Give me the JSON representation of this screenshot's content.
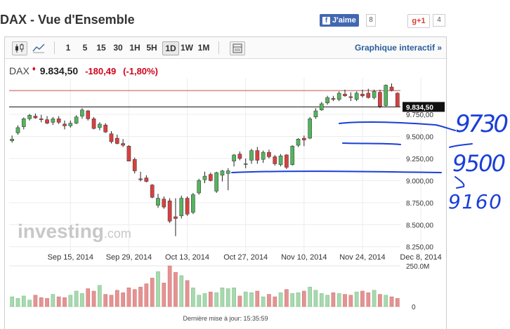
{
  "header": {
    "title": "DAX - Vue d'Ensemble",
    "fb_label": "J'aime",
    "fb_count": "8",
    "gplus_label": "g+1",
    "gplus_count": "4"
  },
  "toolbar": {
    "intervals": [
      "1",
      "5",
      "15",
      "30",
      "1H",
      "5H",
      "1D",
      "1W",
      "1M"
    ],
    "selected": "1D",
    "interactive_label": "Graphique interactif »"
  },
  "quote": {
    "symbol": "DAX",
    "last": "9.834,50",
    "change": "-180,49",
    "change_pct": "(-1,80%)"
  },
  "colors": {
    "up": "#54b45f",
    "down": "#d84040",
    "vol_up": "#a8d8b0",
    "vol_down": "#e49393",
    "annotation": "#1a3fd6",
    "link": "#2a5e9c"
  },
  "watermark": {
    "brand": "investing",
    "suffix": ".com"
  },
  "footer": {
    "updated": "Dernière mise à jour: 15:35:59"
  },
  "chart_data": {
    "type": "candlestick",
    "y_ticks": [
      "9.750,00",
      "9.500,00",
      "9.250,00",
      "9.000,00",
      "8.750,00",
      "8.500,00",
      "8.250,00"
    ],
    "y_tick_values": [
      9750,
      9500,
      9250,
      9000,
      8750,
      8500,
      8250
    ],
    "ylim": [
      8240,
      10100
    ],
    "x_ticks": [
      "Sep 15, 2014",
      "Sep 29, 2014",
      "Oct 13, 2014",
      "Oct 27, 2014",
      "Nov 10, 2014",
      "Nov 24, 2014",
      "Dec 8, 2014"
    ],
    "x_tick_indices": [
      10,
      20,
      30,
      40,
      50,
      60,
      70
    ],
    "price_label": "9.834,50",
    "price_value": 9834.5,
    "reference_line_value": 10020,
    "volume_label": "250.0M",
    "volume_zero_label": "0",
    "volume_max": 250,
    "candles": [
      {
        "o": 9450,
        "h": 9510,
        "l": 9430,
        "c": 9470
      },
      {
        "o": 9540,
        "h": 9625,
        "l": 9520,
        "c": 9600
      },
      {
        "o": 9610,
        "h": 9715,
        "l": 9580,
        "c": 9700
      },
      {
        "o": 9700,
        "h": 9755,
        "l": 9680,
        "c": 9740
      },
      {
        "o": 9730,
        "h": 9760,
        "l": 9700,
        "c": 9710
      },
      {
        "o": 9700,
        "h": 9745,
        "l": 9660,
        "c": 9690
      },
      {
        "o": 9690,
        "h": 9730,
        "l": 9640,
        "c": 9650
      },
      {
        "o": 9660,
        "h": 9720,
        "l": 9630,
        "c": 9700
      },
      {
        "o": 9700,
        "h": 9730,
        "l": 9640,
        "c": 9660
      },
      {
        "o": 9640,
        "h": 9680,
        "l": 9580,
        "c": 9620
      },
      {
        "o": 9620,
        "h": 9680,
        "l": 9600,
        "c": 9650
      },
      {
        "o": 9650,
        "h": 9740,
        "l": 9640,
        "c": 9720
      },
      {
        "o": 9730,
        "h": 9820,
        "l": 9700,
        "c": 9800
      },
      {
        "o": 9790,
        "h": 9800,
        "l": 9680,
        "c": 9700
      },
      {
        "o": 9700,
        "h": 9720,
        "l": 9580,
        "c": 9590
      },
      {
        "o": 9600,
        "h": 9660,
        "l": 9570,
        "c": 9640
      },
      {
        "o": 9630,
        "h": 9650,
        "l": 9540,
        "c": 9550
      },
      {
        "o": 9530,
        "h": 9560,
        "l": 9420,
        "c": 9440
      },
      {
        "o": 9480,
        "h": 9520,
        "l": 9410,
        "c": 9420
      },
      {
        "o": 9420,
        "h": 9470,
        "l": 9380,
        "c": 9400
      },
      {
        "o": 9390,
        "h": 9400,
        "l": 9220,
        "c": 9220
      },
      {
        "o": 9240,
        "h": 9260,
        "l": 9080,
        "c": 9110
      },
      {
        "o": 9020,
        "h": 9100,
        "l": 8990,
        "c": 9010
      },
      {
        "o": 9030,
        "h": 9060,
        "l": 8980,
        "c": 8990
      },
      {
        "o": 8950,
        "h": 8960,
        "l": 8800,
        "c": 8810
      },
      {
        "o": 8720,
        "h": 8850,
        "l": 8690,
        "c": 8800
      },
      {
        "o": 8790,
        "h": 8820,
        "l": 8680,
        "c": 8700
      },
      {
        "o": 8770,
        "h": 8800,
        "l": 8520,
        "c": 8540
      },
      {
        "o": 8590,
        "h": 8800,
        "l": 8370,
        "c": 8570
      },
      {
        "o": 8600,
        "h": 8830,
        "l": 8570,
        "c": 8800
      },
      {
        "o": 8800,
        "h": 8820,
        "l": 8600,
        "c": 8620
      },
      {
        "o": 8640,
        "h": 8860,
        "l": 8620,
        "c": 8840
      },
      {
        "o": 8860,
        "h": 9020,
        "l": 8840,
        "c": 9000
      },
      {
        "o": 9010,
        "h": 9100,
        "l": 8970,
        "c": 9050
      },
      {
        "o": 9070,
        "h": 9090,
        "l": 8990,
        "c": 9000
      },
      {
        "o": 8880,
        "h": 9100,
        "l": 8860,
        "c": 9090
      },
      {
        "o": 9060,
        "h": 9120,
        "l": 8990,
        "c": 9110
      },
      {
        "o": 9080,
        "h": 9140,
        "l": 8890,
        "c": 9110
      },
      {
        "o": 9220,
        "h": 9300,
        "l": 9160,
        "c": 9290
      },
      {
        "o": 9300,
        "h": 9330,
        "l": 9230,
        "c": 9250
      },
      {
        "o": 9190,
        "h": 9250,
        "l": 9140,
        "c": 9190
      },
      {
        "o": 9230,
        "h": 9360,
        "l": 9190,
        "c": 9340
      },
      {
        "o": 9340,
        "h": 9380,
        "l": 9190,
        "c": 9230
      },
      {
        "o": 9240,
        "h": 9340,
        "l": 9200,
        "c": 9320
      },
      {
        "o": 9320,
        "h": 9350,
        "l": 9250,
        "c": 9270
      },
      {
        "o": 9270,
        "h": 9290,
        "l": 9170,
        "c": 9190
      },
      {
        "o": 9180,
        "h": 9300,
        "l": 9160,
        "c": 9280
      },
      {
        "o": 9290,
        "h": 9300,
        "l": 9130,
        "c": 9150
      },
      {
        "o": 9180,
        "h": 9400,
        "l": 9170,
        "c": 9390
      },
      {
        "o": 9400,
        "h": 9480,
        "l": 9380,
        "c": 9470
      },
      {
        "o": 9480,
        "h": 9510,
        "l": 9390,
        "c": 9460
      },
      {
        "o": 9480,
        "h": 9720,
        "l": 9470,
        "c": 9700
      },
      {
        "o": 9720,
        "h": 9820,
        "l": 9700,
        "c": 9790
      },
      {
        "o": 9800,
        "h": 9890,
        "l": 9790,
        "c": 9870
      },
      {
        "o": 9880,
        "h": 9960,
        "l": 9860,
        "c": 9940
      },
      {
        "o": 9930,
        "h": 9960,
        "l": 9900,
        "c": 9920
      },
      {
        "o": 9920,
        "h": 10010,
        "l": 9900,
        "c": 9990
      },
      {
        "o": 9980,
        "h": 10030,
        "l": 9950,
        "c": 9960
      },
      {
        "o": 9950,
        "h": 10000,
        "l": 9900,
        "c": 9940
      },
      {
        "o": 9920,
        "h": 10010,
        "l": 9900,
        "c": 9990
      },
      {
        "o": 9980,
        "h": 10030,
        "l": 9940,
        "c": 9960
      },
      {
        "o": 9990,
        "h": 10040,
        "l": 9930,
        "c": 9940
      },
      {
        "o": 9940,
        "h": 10030,
        "l": 9920,
        "c": 10010
      },
      {
        "o": 10000,
        "h": 10030,
        "l": 9820,
        "c": 9840
      },
      {
        "o": 9850,
        "h": 10090,
        "l": 9840,
        "c": 10080
      },
      {
        "o": 10060,
        "h": 10100,
        "l": 10010,
        "c": 10020
      },
      {
        "o": 9990,
        "h": 10000,
        "l": 9830,
        "c": 9835
      }
    ],
    "volume": [
      60,
      50,
      65,
      40,
      70,
      55,
      50,
      75,
      60,
      55,
      70,
      95,
      80,
      110,
      95,
      130,
      75,
      70,
      100,
      85,
      115,
      105,
      120,
      140,
      175,
      215,
      145,
      250,
      210,
      190,
      160,
      115,
      70,
      80,
      90,
      85,
      115,
      110,
      115,
      65,
      90,
      85,
      95,
      60,
      75,
      60,
      85,
      105,
      80,
      85,
      95,
      120,
      100,
      80,
      70,
      85,
      80,
      75,
      70,
      90,
      95,
      85,
      100,
      75,
      70,
      60,
      50
    ]
  },
  "annotations": {
    "texts": [
      "9730",
      "9500",
      "9160"
    ]
  }
}
